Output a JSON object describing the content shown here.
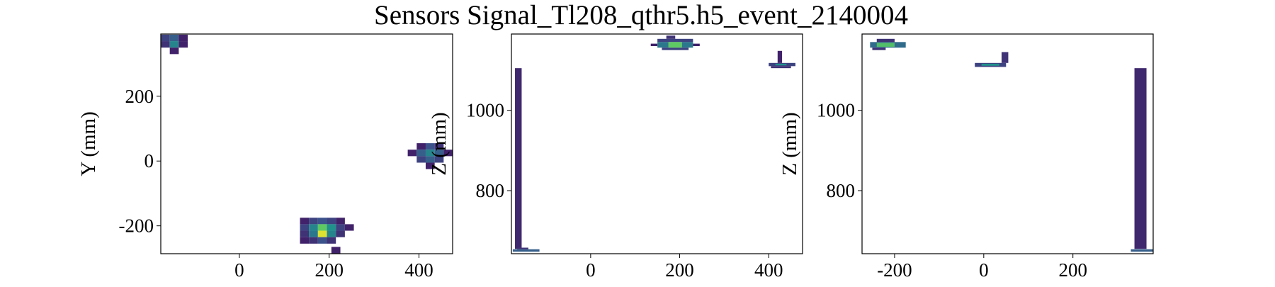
{
  "title": "Sensors Signal_Tl208_qthr5.h5_event_2140004",
  "chart_data": [
    {
      "type": "heatmap",
      "ylabel": "Y (mm)",
      "cmap": "viridis",
      "xlim": [
        -175,
        475
      ],
      "ylim": [
        -286,
        392
      ],
      "xticks": [
        0,
        200,
        400
      ],
      "yticks": [
        -200,
        0,
        200
      ],
      "cells": [
        [
          -175,
          -155,
          370,
          390,
          0.2
        ],
        [
          -155,
          -135,
          370,
          390,
          0.3
        ],
        [
          -135,
          -115,
          370,
          390,
          0.1
        ],
        [
          -175,
          -155,
          350,
          370,
          0.15
        ],
        [
          -155,
          -135,
          350,
          370,
          0.45
        ],
        [
          -135,
          -115,
          350,
          370,
          0.1
        ],
        [
          -155,
          -135,
          330,
          350,
          0.1
        ],
        [
          395,
          415,
          35,
          55,
          0.1
        ],
        [
          415,
          435,
          35,
          55,
          0.25
        ],
        [
          435,
          455,
          35,
          55,
          0.15
        ],
        [
          375,
          395,
          15,
          35,
          0.1
        ],
        [
          395,
          415,
          15,
          35,
          0.3
        ],
        [
          415,
          435,
          15,
          35,
          0.45
        ],
        [
          435,
          455,
          15,
          35,
          0.3
        ],
        [
          455,
          475,
          15,
          35,
          0.1
        ],
        [
          395,
          415,
          -5,
          15,
          0.2
        ],
        [
          415,
          435,
          -5,
          15,
          0.3
        ],
        [
          435,
          455,
          -5,
          15,
          0.2
        ],
        [
          415,
          435,
          -25,
          -5,
          0.1
        ],
        [
          135,
          155,
          -195,
          -175,
          0.1
        ],
        [
          155,
          175,
          -195,
          -175,
          0.2
        ],
        [
          175,
          195,
          -195,
          -175,
          0.25
        ],
        [
          195,
          215,
          -195,
          -175,
          0.2
        ],
        [
          215,
          235,
          -195,
          -175,
          0.1
        ],
        [
          135,
          155,
          -215,
          -195,
          0.2
        ],
        [
          155,
          175,
          -215,
          -195,
          0.45
        ],
        [
          175,
          195,
          -215,
          -195,
          0.75
        ],
        [
          195,
          215,
          -215,
          -195,
          0.5
        ],
        [
          215,
          235,
          -215,
          -195,
          0.2
        ],
        [
          235,
          255,
          -215,
          -195,
          0.1
        ],
        [
          135,
          155,
          -235,
          -215,
          0.15
        ],
        [
          155,
          175,
          -235,
          -215,
          0.4
        ],
        [
          175,
          195,
          -235,
          -215,
          0.95
        ],
        [
          195,
          215,
          -235,
          -215,
          0.45
        ],
        [
          215,
          235,
          -235,
          -215,
          0.15
        ],
        [
          135,
          155,
          -255,
          -235,
          0.1
        ],
        [
          155,
          175,
          -255,
          -235,
          0.15
        ],
        [
          175,
          195,
          -255,
          -235,
          0.25
        ],
        [
          195,
          215,
          -255,
          -235,
          0.15
        ],
        [
          205,
          225,
          -286,
          -265,
          0.1
        ]
      ]
    },
    {
      "type": "heatmap",
      "ylabel": "Z (mm)",
      "cmap": "viridis",
      "xlim": [
        -178,
        476
      ],
      "ylim": [
        643,
        1190
      ],
      "xticks": [
        0,
        200,
        400
      ],
      "yticks": [
        800,
        1000
      ],
      "cells": [
        [
          -170,
          -155,
          655,
          1105,
          0.12
        ],
        [
          -175,
          -115,
          648,
          654,
          0.3
        ],
        [
          -165,
          -140,
          654,
          658,
          0.15
        ],
        [
          150,
          230,
          1170,
          1178,
          0.2
        ],
        [
          170,
          190,
          1178,
          1186,
          0.15
        ],
        [
          135,
          150,
          1160,
          1166,
          0.1
        ],
        [
          150,
          175,
          1156,
          1170,
          0.4
        ],
        [
          175,
          205,
          1156,
          1170,
          0.75
        ],
        [
          205,
          230,
          1156,
          1170,
          0.4
        ],
        [
          230,
          245,
          1160,
          1166,
          0.1
        ],
        [
          160,
          220,
          1150,
          1156,
          0.2
        ],
        [
          400,
          460,
          1110,
          1118,
          0.2
        ],
        [
          415,
          440,
          1112,
          1116,
          0.5
        ],
        [
          420,
          430,
          1118,
          1148,
          0.1
        ],
        [
          405,
          450,
          1105,
          1110,
          0.15
        ]
      ]
    },
    {
      "type": "heatmap",
      "ylabel": "Z (mm)",
      "cmap": "viridis",
      "xlim": [
        -273,
        380
      ],
      "ylim": [
        643,
        1190
      ],
      "xticks": [
        -200,
        0,
        200
      ],
      "yticks": [
        800,
        1000
      ],
      "cells": [
        [
          338,
          365,
          655,
          1105,
          0.12
        ],
        [
          330,
          380,
          648,
          654,
          0.3
        ],
        [
          -255,
          -175,
          1156,
          1170,
          0.35
        ],
        [
          -240,
          -200,
          1158,
          1168,
          0.7
        ],
        [
          -250,
          -220,
          1150,
          1156,
          0.15
        ],
        [
          -240,
          -200,
          1170,
          1178,
          0.15
        ],
        [
          -20,
          50,
          1108,
          1118,
          0.2
        ],
        [
          -5,
          35,
          1111,
          1116,
          0.5
        ],
        [
          40,
          55,
          1118,
          1145,
          0.15
        ]
      ]
    }
  ]
}
